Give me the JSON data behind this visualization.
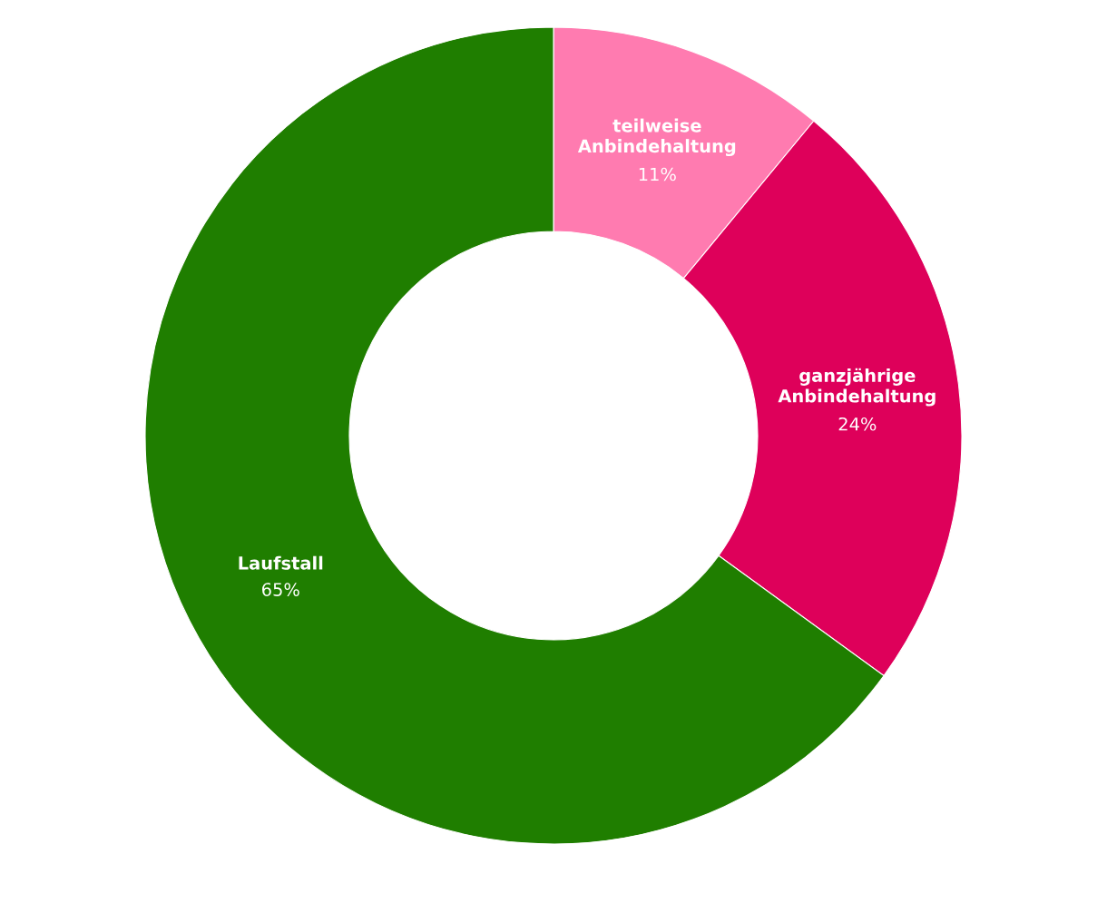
{
  "chart_data": {
    "type": "donut",
    "categories": [
      "teilweise\nAnbindehaltung",
      "ganzjährige\nAnbindehaltung",
      "Laufstall"
    ],
    "values": [
      11,
      24,
      65
    ],
    "colors": [
      "#ff7bb0",
      "#de005a",
      "#1f7e00"
    ],
    "value_labels": [
      "11%",
      "24%",
      "65%"
    ]
  }
}
